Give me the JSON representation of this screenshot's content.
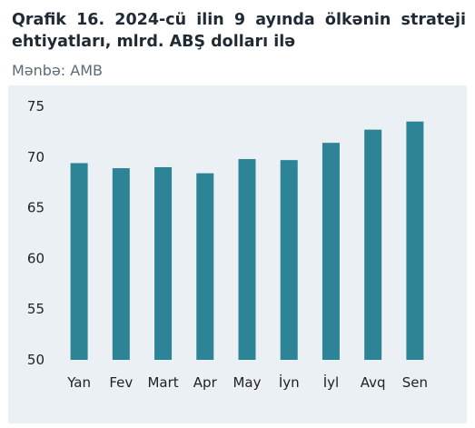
{
  "header": {
    "title": "Qrafik 16. 2024-cü ilin 9 ayında ölkənin strateji ehtiyatları, mlrd. ABŞ dolları ilə",
    "source": "Mənbə: AMB"
  },
  "chart_data": {
    "type": "bar",
    "title": "Qrafik 16. 2024-cü ilin 9 ayında ölkənin strateji ehtiyatları, mlrd. ABŞ dolları ilə",
    "xlabel": "",
    "ylabel": "",
    "categories": [
      "Yan",
      "Fev",
      "Mart",
      "Apr",
      "May",
      "İyn",
      "İyl",
      "Avq",
      "Sen"
    ],
    "values": [
      69.4,
      68.9,
      69.0,
      68.4,
      69.8,
      69.7,
      71.4,
      72.7,
      73.5
    ],
    "ylim": [
      50,
      75
    ],
    "yticks": [
      "75",
      "70",
      "65",
      "60",
      "55",
      "50"
    ],
    "grid": false,
    "legend": "none",
    "colors": {
      "bar": "#2e8497",
      "panel_background": "#eaf0f3"
    }
  }
}
